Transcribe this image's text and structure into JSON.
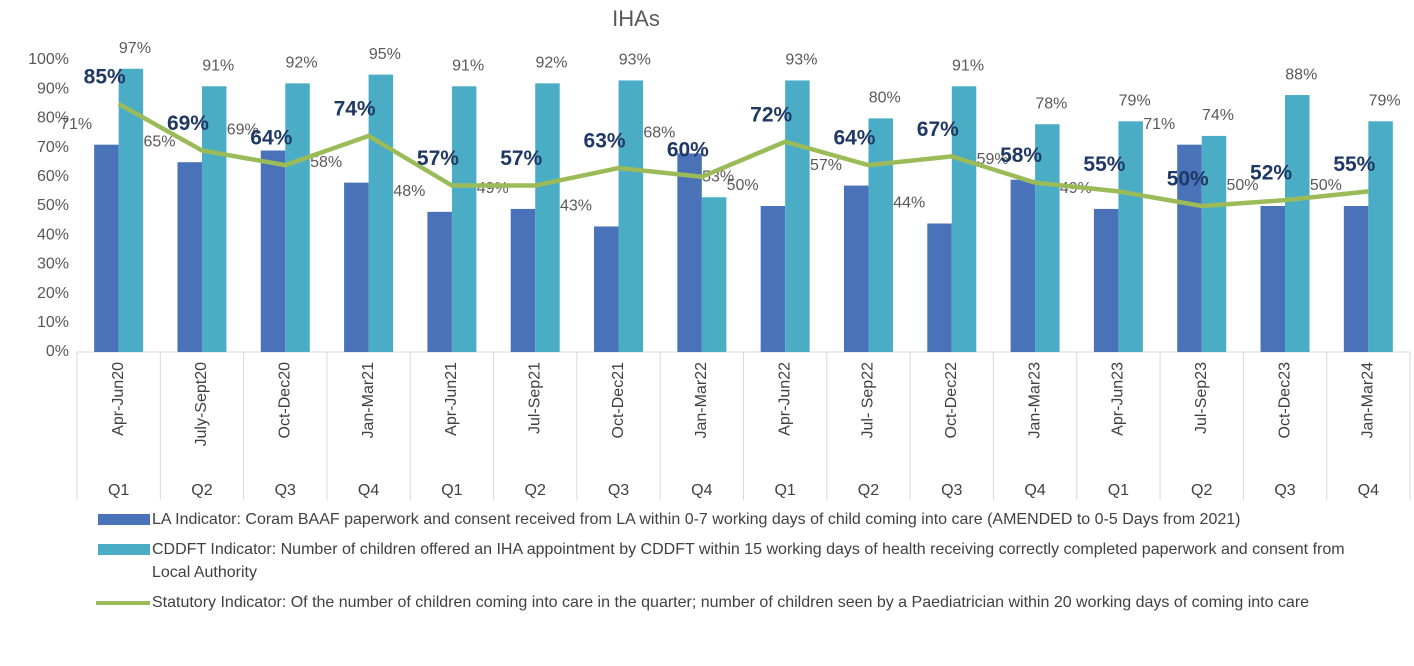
{
  "chart_data": {
    "type": "bar",
    "title": "IHAs",
    "categories": [
      "Apr-Jun20",
      "July-Sept20",
      "Oct-Dec20",
      "Jan-Mar21",
      "Apr-Jun21",
      "Jul-Sep21",
      "Oct-Dec21",
      "Jan-Mar22",
      "Apr-Jun22",
      "Jul- Sep22",
      "Oct-Dec22",
      "Jan-Mar23",
      "Apr-Jun23",
      "Jul-Sep23",
      "Oct-Dec23",
      "Jan-Mar24"
    ],
    "category_groups": [
      "Q1",
      "Q2",
      "Q3",
      "Q4",
      "Q1",
      "Q2",
      "Q3",
      "Q4",
      "Q1",
      "Q2",
      "Q3",
      "Q4",
      "Q1",
      "Q2",
      "Q3",
      "Q4"
    ],
    "ylim": [
      0,
      100
    ],
    "yticks": [
      {
        "value": 0,
        "label": "0%"
      },
      {
        "value": 10,
        "label": "10%"
      },
      {
        "value": 20,
        "label": "20%"
      },
      {
        "value": 30,
        "label": "30%"
      },
      {
        "value": 40,
        "label": "40%"
      },
      {
        "value": 50,
        "label": "50%"
      },
      {
        "value": 60,
        "label": "60%"
      },
      {
        "value": 70,
        "label": "70%"
      },
      {
        "value": 80,
        "label": "80%"
      },
      {
        "value": 90,
        "label": "90%"
      },
      {
        "value": 100,
        "label": "100%"
      }
    ],
    "grid": false,
    "series": [
      {
        "name": "LA Indicator:  Coram BAAF paperwork and consent received from LA within 0-7 working days of child coming into care (AMENDED to 0-5 Days from 2021)",
        "type": "bar",
        "color": "#4a72b8",
        "values": [
          71,
          65,
          69,
          58,
          48,
          49,
          43,
          68,
          50,
          57,
          44,
          59,
          49,
          71,
          50,
          50
        ],
        "value_labels": [
          "71%",
          "65%",
          "69%",
          "58%",
          "48%",
          "49%",
          "43%",
          "68%",
          "50%",
          "57%",
          "44%",
          "59%",
          "49%",
          "71%",
          "50%",
          "50%"
        ]
      },
      {
        "name": "CDDFT Indicator: Number of children offered an IHA appointment by CDDFT within 15 working days of health receiving correctly completed paperwork and consent from Local Authority",
        "type": "bar",
        "color": "#4bacc6",
        "values": [
          97,
          91,
          92,
          95,
          91,
          92,
          93,
          53,
          93,
          80,
          91,
          78,
          79,
          74,
          88,
          79
        ],
        "value_labels": [
          "97%",
          "91%",
          "92%",
          "95%",
          "91%",
          "92%",
          "93%",
          "53%",
          "93%",
          "80%",
          "91%",
          "78%",
          "79%",
          "74%",
          "88%",
          "79%"
        ]
      },
      {
        "name": "Statutory Indicator:  Of the number of children coming into care in the quarter; number of children seen by a Paediatrician within 20 working days of coming into care",
        "type": "line",
        "color": "#9bbb59",
        "values": [
          85,
          69,
          64,
          74,
          57,
          57,
          63,
          60,
          72,
          64,
          67,
          58,
          55,
          50,
          52,
          55
        ],
        "value_labels": [
          "85%",
          "69%",
          "64%",
          "74%",
          "57%",
          "57%",
          "63%",
          "60%",
          "72%",
          "64%",
          "67%",
          "58%",
          "55%",
          "50%",
          "52%",
          "55%"
        ]
      }
    ]
  }
}
